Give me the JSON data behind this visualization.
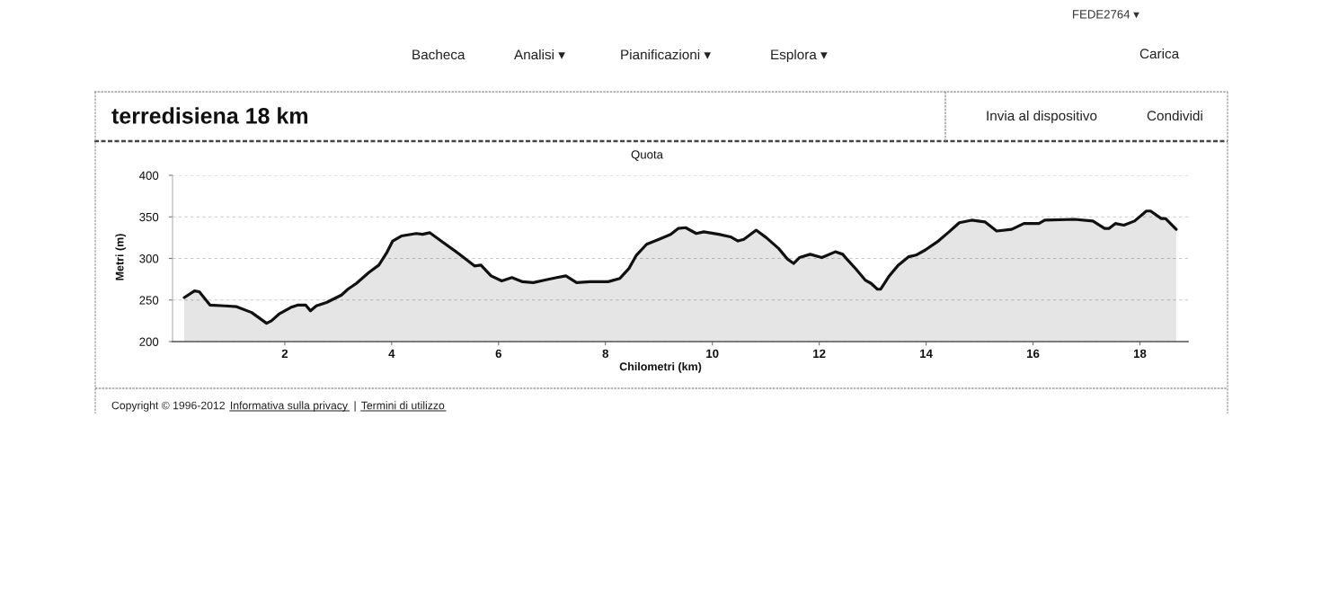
{
  "chart_data": {
    "type": "area",
    "title": "terredisiena 18 km",
    "subtitle": "Quota",
    "xlabel": "Chilometri (km)",
    "ylabel": "Metri (m)",
    "x": [
      0.12,
      0.31,
      0.4,
      0.6,
      0.88,
      1.1,
      1.38,
      1.66,
      1.75,
      1.89,
      2.11,
      2.25,
      2.39,
      2.48,
      2.59,
      2.78,
      3.06,
      3.18,
      3.34,
      3.57,
      3.76,
      3.9,
      4.02,
      4.18,
      4.46,
      4.58,
      4.71,
      4.97,
      5.25,
      5.55,
      5.67,
      5.86,
      6.06,
      6.25,
      6.45,
      6.65,
      6.87,
      7.09,
      7.26,
      7.46,
      7.71,
      8.05,
      8.27,
      8.44,
      8.58,
      8.77,
      9.0,
      9.22,
      9.36,
      9.5,
      9.7,
      9.84,
      10.12,
      10.34,
      10.48,
      10.59,
      10.82,
      11.01,
      11.24,
      11.41,
      11.52,
      11.63,
      11.83,
      12.05,
      12.3,
      12.44,
      12.52,
      12.69,
      12.86,
      12.97,
      13.09,
      13.15,
      13.31,
      13.48,
      13.67,
      13.81,
      13.98,
      14.23,
      14.43,
      14.62,
      14.85,
      15.1,
      15.32,
      15.6,
      15.83,
      16.11,
      16.22,
      16.78,
      17.12,
      17.34,
      17.42,
      17.54,
      17.7,
      17.9,
      18.12,
      18.2,
      18.4,
      18.48,
      18.68
    ],
    "series": [
      {
        "color": "#111111",
        "values": [
          253,
          261,
          260,
          244,
          243,
          242,
          235,
          222,
          225,
          233,
          241,
          244,
          244,
          237,
          243,
          247,
          256,
          263,
          270,
          283,
          292,
          306,
          321,
          327,
          330,
          329,
          331,
          319,
          306,
          291,
          292,
          279,
          273,
          277,
          272,
          271,
          274,
          277,
          279,
          271,
          272,
          272,
          276,
          288,
          304,
          317,
          323,
          329,
          336,
          337,
          330,
          332,
          329,
          326,
          321,
          323,
          334,
          325,
          312,
          299,
          294,
          301,
          305,
          301,
          308,
          305,
          299,
          287,
          274,
          270,
          263,
          263,
          279,
          292,
          302,
          304,
          310,
          321,
          332,
          343,
          346,
          344,
          333,
          335,
          342,
          342,
          346,
          347,
          345,
          336,
          336,
          342,
          340,
          345,
          357,
          357,
          348,
          348,
          335
        ]
      }
    ],
    "xlim": [
      -0.1,
      18.9
    ],
    "xticks": [
      2,
      4,
      6,
      8,
      10,
      12,
      14,
      16,
      18
    ],
    "ylim": [
      200,
      400
    ],
    "yticks": [
      200,
      250,
      300,
      350,
      400
    ],
    "grid": "y",
    "annotations": [
      "FEDE2764 ▾",
      "Bacheca",
      "Analisi ▾",
      "Pianificazioni ▾",
      "Esplora ▾",
      "Carica",
      "Invia al dispositivo",
      "Condividi",
      "Copyright © 1996-2012",
      "Informativa sulla privacy",
      "|",
      "Termini di utilizzo"
    ]
  }
}
